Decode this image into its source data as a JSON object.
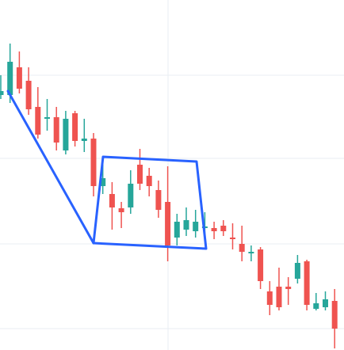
{
  "chart_data": {
    "type": "candlestick",
    "categories": [
      null,
      null,
      null,
      null,
      null,
      null,
      null,
      null,
      null,
      null,
      null,
      null,
      null,
      null,
      null,
      null,
      null,
      null,
      null,
      null,
      null,
      null,
      null,
      null,
      null,
      null,
      null,
      null,
      null,
      null,
      null,
      null,
      null,
      null,
      null,
      null,
      null
    ],
    "open": [
      322,
      322,
      357,
      340,
      307,
      292,
      294,
      252,
      299,
      264,
      267,
      207,
      197,
      179,
      180,
      234,
      220,
      202,
      187,
      142,
      152,
      150,
      154,
      154,
      157,
      142,
      134,
      122,
      127,
      74,
      80,
      80,
      90,
      112,
      52,
      54,
      62
    ],
    "high": [
      347,
      387,
      377,
      357,
      332,
      317,
      307,
      302,
      302,
      292,
      274,
      242,
      212,
      187,
      227,
      254,
      230,
      214,
      232,
      172,
      180,
      177,
      174,
      162,
      164,
      160,
      157,
      132,
      130,
      87,
      104,
      92,
      120,
      114,
      72,
      74,
      77
    ],
    "low": [
      317,
      312,
      324,
      297,
      267,
      277,
      252,
      247,
      257,
      250,
      194,
      197,
      152,
      154,
      172,
      202,
      194,
      167,
      112,
      132,
      144,
      142,
      140,
      140,
      144,
      127,
      112,
      112,
      77,
      44,
      50,
      57,
      84,
      50,
      50,
      50,
      2
    ],
    "close": [
      327,
      364,
      330,
      304,
      272,
      294,
      262,
      292,
      264,
      267,
      207,
      217,
      180,
      174,
      210,
      210,
      207,
      177,
      132,
      162,
      164,
      162,
      156,
      150,
      150,
      140,
      124,
      124,
      87,
      57,
      54,
      77,
      110,
      57,
      59,
      64,
      27
    ],
    "up_color": "#26a69a",
    "down_color": "#ef5350",
    "ylim": [
      0,
      442
    ],
    "yticks": [
      27,
      134,
      242,
      347
    ],
    "grid": true
  }
}
